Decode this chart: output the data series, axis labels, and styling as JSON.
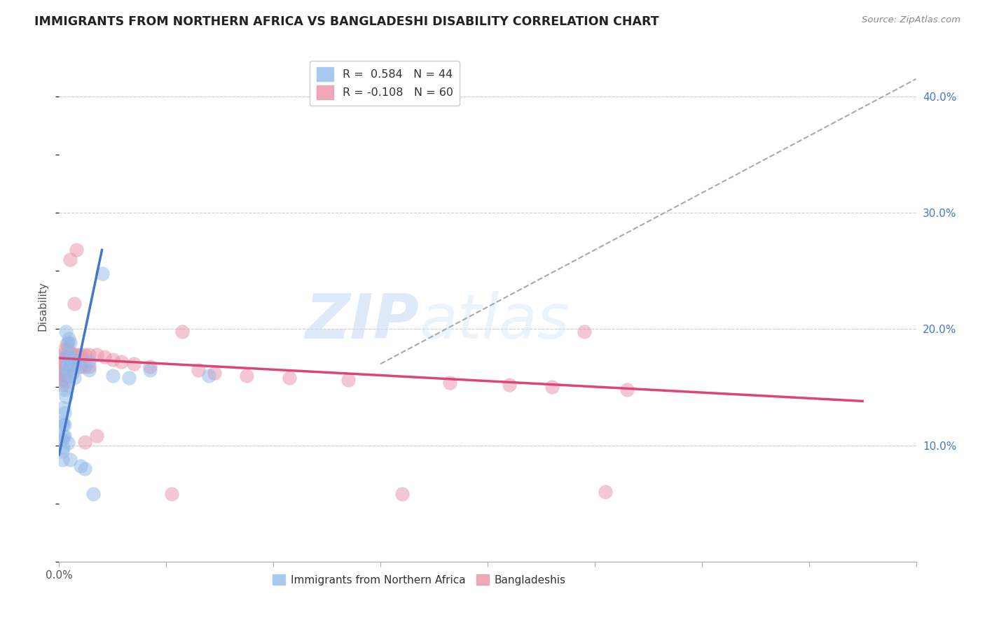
{
  "title": "IMMIGRANTS FROM NORTHERN AFRICA VS BANGLADESHI DISABILITY CORRELATION CHART",
  "source": "Source: ZipAtlas.com",
  "ylabel": "Disability",
  "watermark_zip": "ZIP",
  "watermark_atlas": "atlas",
  "xlim": [
    0.0,
    0.8
  ],
  "ylim": [
    0.0,
    0.44
  ],
  "xtick_positions": [
    0.0,
    0.1,
    0.2,
    0.3,
    0.4,
    0.5,
    0.6,
    0.7,
    0.8
  ],
  "xtick_labels_show": {
    "0.0": "0.0%"
  },
  "yticks_right": [
    0.1,
    0.2,
    0.3,
    0.4
  ],
  "ytick_labels_right": [
    "10.0%",
    "20.0%",
    "30.0%",
    "40.0%"
  ],
  "legend_label1": "Immigrants from Northern Africa",
  "legend_label2": "Bangladeshis",
  "blue_color": "#a8c8f0",
  "blue_dot_color": "#90b8e8",
  "pink_color": "#f0a8b8",
  "pink_dot_color": "#e890a8",
  "blue_line_color": "#4477cc",
  "pink_line_color": "#dd4477",
  "dashed_line_color": "#aaaaaa",
  "background_color": "#ffffff",
  "grid_color": "#cccccc",
  "blue_scatter": [
    [
      0.003,
      0.12
    ],
    [
      0.003,
      0.105
    ],
    [
      0.003,
      0.095
    ],
    [
      0.003,
      0.088
    ],
    [
      0.004,
      0.132
    ],
    [
      0.004,
      0.118
    ],
    [
      0.004,
      0.108
    ],
    [
      0.004,
      0.098
    ],
    [
      0.005,
      0.148
    ],
    [
      0.005,
      0.128
    ],
    [
      0.005,
      0.118
    ],
    [
      0.005,
      0.108
    ],
    [
      0.006,
      0.198
    ],
    [
      0.006,
      0.162
    ],
    [
      0.006,
      0.152
    ],
    [
      0.006,
      0.142
    ],
    [
      0.007,
      0.178
    ],
    [
      0.007,
      0.168
    ],
    [
      0.007,
      0.158
    ],
    [
      0.008,
      0.188
    ],
    [
      0.008,
      0.172
    ],
    [
      0.008,
      0.102
    ],
    [
      0.009,
      0.192
    ],
    [
      0.009,
      0.178
    ],
    [
      0.009,
      0.168
    ],
    [
      0.01,
      0.188
    ],
    [
      0.01,
      0.172
    ],
    [
      0.01,
      0.088
    ],
    [
      0.012,
      0.175
    ],
    [
      0.012,
      0.162
    ],
    [
      0.014,
      0.172
    ],
    [
      0.014,
      0.158
    ],
    [
      0.016,
      0.17
    ],
    [
      0.02,
      0.168
    ],
    [
      0.02,
      0.082
    ],
    [
      0.024,
      0.08
    ],
    [
      0.028,
      0.172
    ],
    [
      0.028,
      0.165
    ],
    [
      0.032,
      0.058
    ],
    [
      0.04,
      0.248
    ],
    [
      0.05,
      0.16
    ],
    [
      0.065,
      0.158
    ],
    [
      0.085,
      0.165
    ],
    [
      0.14,
      0.16
    ]
  ],
  "pink_scatter": [
    [
      0.003,
      0.167
    ],
    [
      0.003,
      0.162
    ],
    [
      0.003,
      0.157
    ],
    [
      0.003,
      0.152
    ],
    [
      0.004,
      0.178
    ],
    [
      0.004,
      0.172
    ],
    [
      0.004,
      0.164
    ],
    [
      0.004,
      0.157
    ],
    [
      0.005,
      0.182
    ],
    [
      0.005,
      0.174
    ],
    [
      0.005,
      0.167
    ],
    [
      0.005,
      0.16
    ],
    [
      0.006,
      0.177
    ],
    [
      0.006,
      0.17
    ],
    [
      0.006,
      0.162
    ],
    [
      0.006,
      0.155
    ],
    [
      0.007,
      0.187
    ],
    [
      0.007,
      0.177
    ],
    [
      0.007,
      0.167
    ],
    [
      0.008,
      0.182
    ],
    [
      0.008,
      0.172
    ],
    [
      0.008,
      0.164
    ],
    [
      0.009,
      0.18
    ],
    [
      0.009,
      0.17
    ],
    [
      0.01,
      0.26
    ],
    [
      0.01,
      0.178
    ],
    [
      0.01,
      0.168
    ],
    [
      0.014,
      0.222
    ],
    [
      0.014,
      0.178
    ],
    [
      0.016,
      0.268
    ],
    [
      0.016,
      0.178
    ],
    [
      0.02,
      0.178
    ],
    [
      0.02,
      0.168
    ],
    [
      0.024,
      0.178
    ],
    [
      0.024,
      0.168
    ],
    [
      0.024,
      0.103
    ],
    [
      0.028,
      0.178
    ],
    [
      0.028,
      0.168
    ],
    [
      0.035,
      0.178
    ],
    [
      0.035,
      0.108
    ],
    [
      0.042,
      0.176
    ],
    [
      0.05,
      0.174
    ],
    [
      0.058,
      0.172
    ],
    [
      0.07,
      0.17
    ],
    [
      0.085,
      0.168
    ],
    [
      0.105,
      0.058
    ],
    [
      0.115,
      0.198
    ],
    [
      0.13,
      0.165
    ],
    [
      0.145,
      0.162
    ],
    [
      0.175,
      0.16
    ],
    [
      0.215,
      0.158
    ],
    [
      0.27,
      0.156
    ],
    [
      0.32,
      0.058
    ],
    [
      0.365,
      0.154
    ],
    [
      0.42,
      0.152
    ],
    [
      0.46,
      0.15
    ],
    [
      0.49,
      0.198
    ],
    [
      0.51,
      0.06
    ],
    [
      0.53,
      0.148
    ]
  ],
  "blue_trendline": [
    [
      0.0,
      0.092
    ],
    [
      0.04,
      0.268
    ]
  ],
  "pink_trendline": [
    [
      0.0,
      0.175
    ],
    [
      0.75,
      0.138
    ]
  ],
  "dashed_trendline": [
    [
      0.3,
      0.17
    ],
    [
      0.8,
      0.415
    ]
  ]
}
